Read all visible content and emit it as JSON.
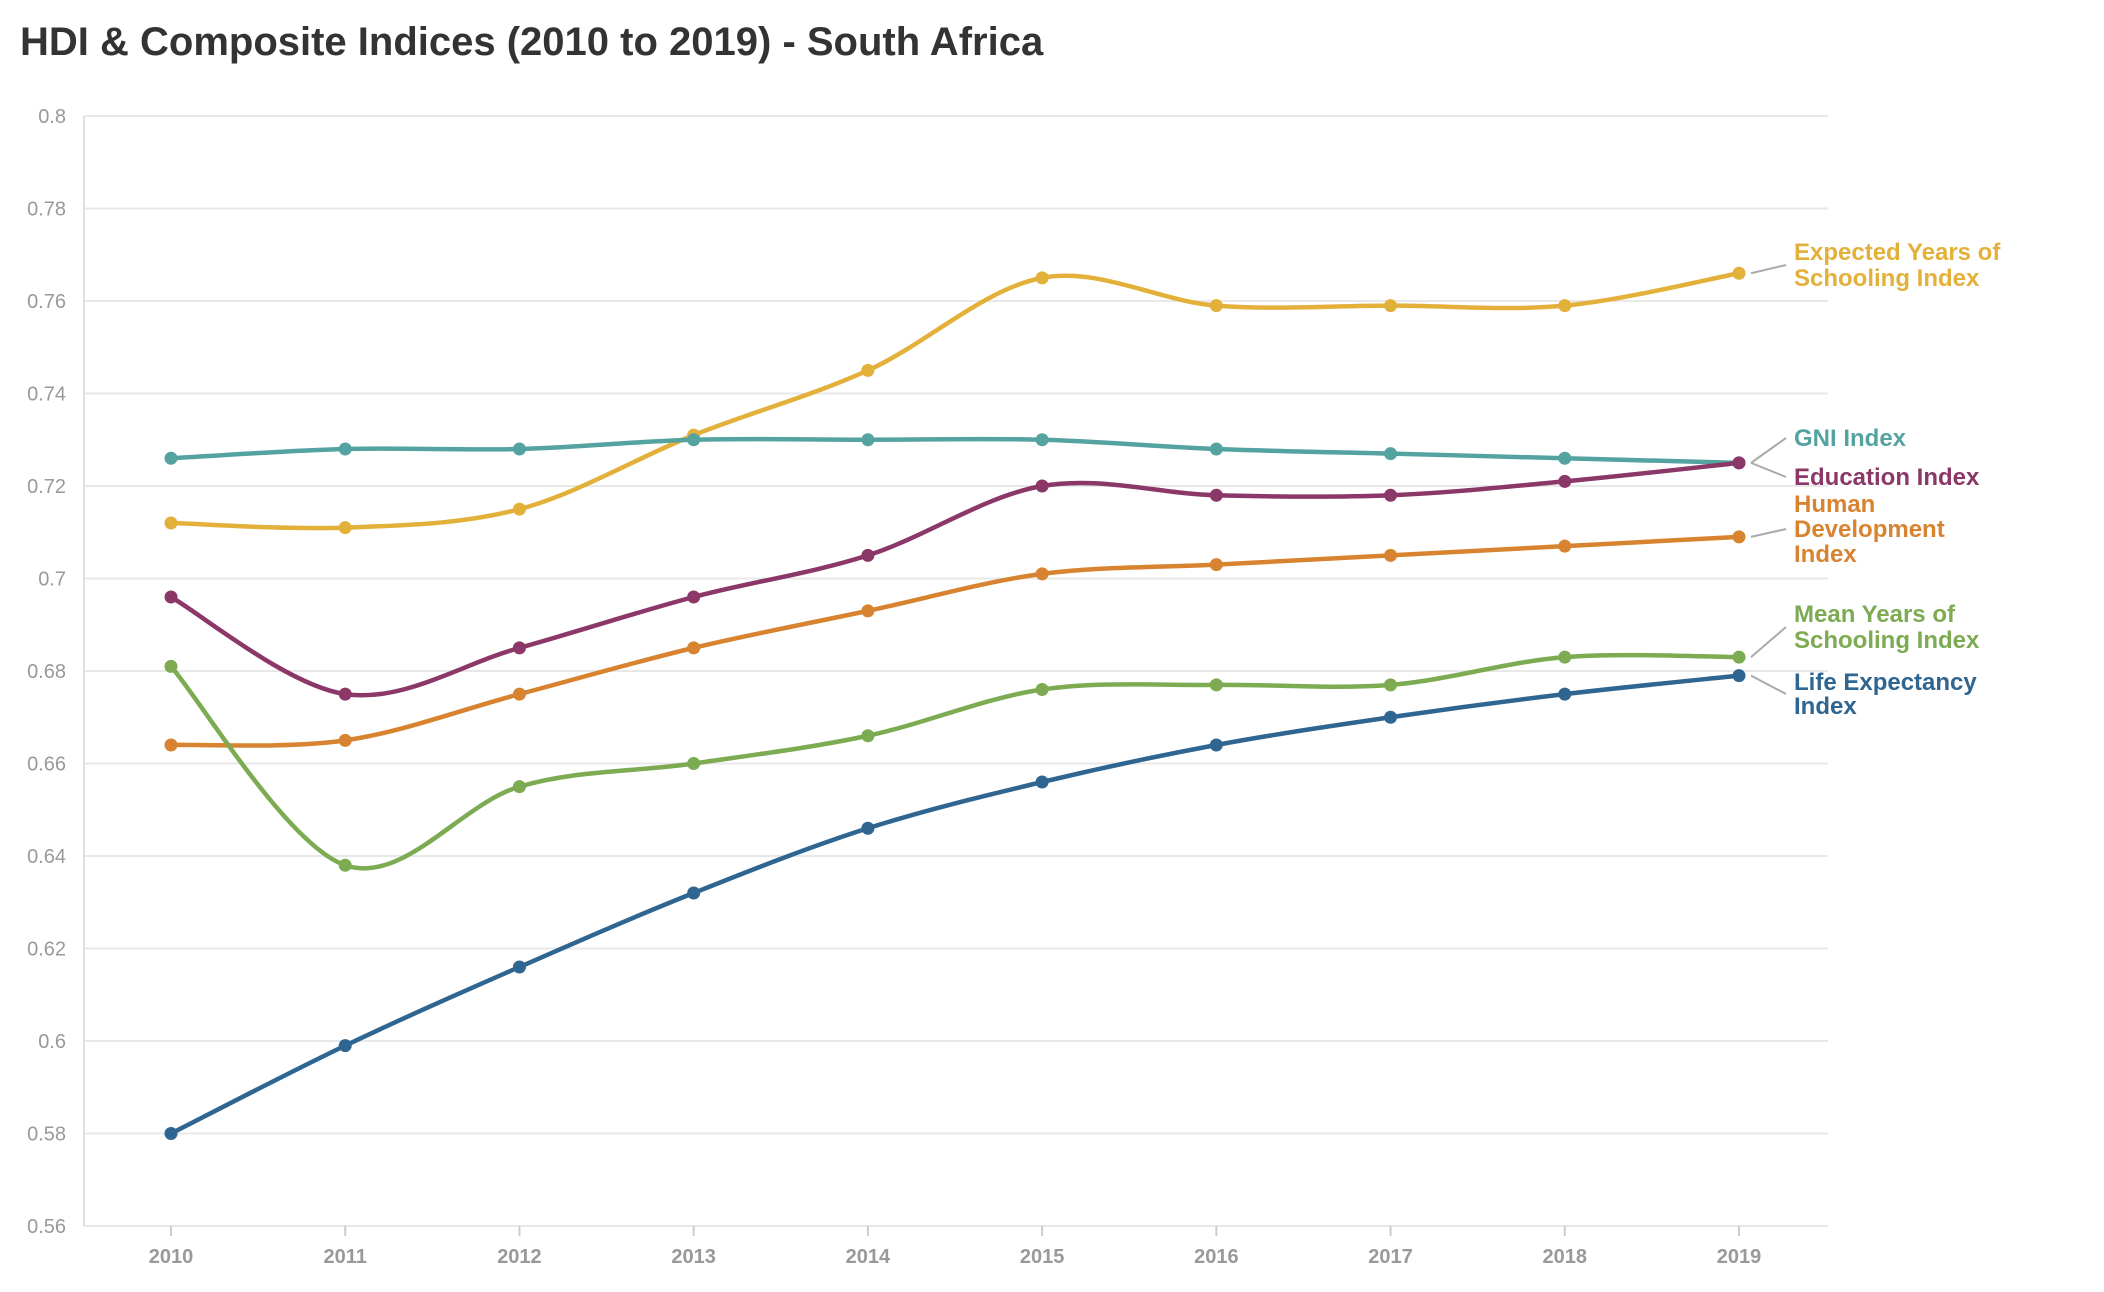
{
  "chart_data": {
    "type": "line",
    "title": "HDI & Composite Indices (2010 to 2019) - South Africa",
    "xlabel": "",
    "ylabel": "",
    "x": [
      2010,
      2011,
      2012,
      2013,
      2014,
      2015,
      2016,
      2017,
      2018,
      2019
    ],
    "ylim": [
      0.56,
      0.8
    ],
    "yticks": [
      0.56,
      0.58,
      0.6,
      0.62,
      0.64,
      0.66,
      0.68,
      0.7,
      0.72,
      0.74,
      0.76,
      0.78,
      0.8
    ],
    "ytick_labels": [
      "0.56",
      "0.58",
      "0.6",
      "0.62",
      "0.64",
      "0.66",
      "0.68",
      "0.7",
      "0.72",
      "0.74",
      "0.76",
      "0.78",
      "0.8"
    ],
    "grid": "horizontal",
    "legend": "direct labels right",
    "series": [
      {
        "name": "Expected Years of Schooling Index",
        "label_lines": [
          "Expected Years of",
          "Schooling Index"
        ],
        "color": "#e3b03a",
        "values": [
          0.712,
          0.711,
          0.715,
          0.731,
          0.745,
          0.765,
          0.759,
          0.759,
          0.759,
          0.766
        ]
      },
      {
        "name": "GNI Index",
        "label_lines": [
          "GNI Index"
        ],
        "color": "#55a3a1",
        "values": [
          0.726,
          0.728,
          0.728,
          0.73,
          0.73,
          0.73,
          0.728,
          0.727,
          0.726,
          0.725
        ]
      },
      {
        "name": "Education Index",
        "label_lines": [
          "Education Index"
        ],
        "color": "#8b3868",
        "values": [
          0.696,
          0.675,
          0.685,
          0.696,
          0.705,
          0.72,
          0.718,
          0.718,
          0.721,
          0.725
        ]
      },
      {
        "name": "Human Development Index",
        "label_lines": [
          "Human",
          "Development",
          "Index"
        ],
        "color": "#d8832f",
        "values": [
          0.664,
          0.665,
          0.675,
          0.685,
          0.693,
          0.701,
          0.703,
          0.705,
          0.707,
          0.709
        ]
      },
      {
        "name": "Mean Years of Schooling Index",
        "label_lines": [
          "Mean Years of",
          "Schooling Index"
        ],
        "color": "#7cab52",
        "values": [
          0.681,
          0.638,
          0.655,
          0.66,
          0.666,
          0.676,
          0.677,
          0.677,
          0.683,
          0.683
        ]
      },
      {
        "name": "Life Expectancy Index",
        "label_lines": [
          "Life Expectancy",
          "Index"
        ],
        "color": "#2f6591",
        "values": [
          0.58,
          0.599,
          0.616,
          0.632,
          0.646,
          0.656,
          0.664,
          0.67,
          0.675,
          0.679
        ]
      }
    ]
  }
}
